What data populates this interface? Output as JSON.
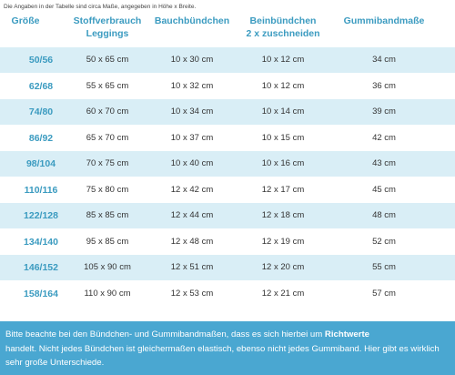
{
  "caption": "Die Angaben in der Tabelle sind circa Maße, angegeben in Höhe x Breite.",
  "headers": {
    "size": "Größe",
    "fabric_line1": "Stoffverbrauch",
    "fabric_line2": "Leggings",
    "waist": "Bauchbündchen",
    "leg_line1": "Beinbündchen",
    "leg_line2": "2 x zuschneiden",
    "elastic": "Gummibandmaße"
  },
  "rows": [
    {
      "size": "50/56",
      "fabric": "50 x 65 cm",
      "waist": "10 x 30 cm",
      "leg": "10 x 12 cm",
      "elastic": "34 cm"
    },
    {
      "size": "62/68",
      "fabric": "55 x 65 cm",
      "waist": "10 x 32 cm",
      "leg": "10 x 12 cm",
      "elastic": "36 cm"
    },
    {
      "size": "74/80",
      "fabric": "60 x 70 cm",
      "waist": "10 x 34 cm",
      "leg": "10 x 14 cm",
      "elastic": "39 cm"
    },
    {
      "size": "86/92",
      "fabric": "65 x 70 cm",
      "waist": "10 x 37 cm",
      "leg": "10 x 15 cm",
      "elastic": "42 cm"
    },
    {
      "size": "98/104",
      "fabric": "70 x 75  cm",
      "waist": "10 x 40 cm",
      "leg": "10 x 16 cm",
      "elastic": "43 cm"
    },
    {
      "size": "110/116",
      "fabric": "75 x 80 cm",
      "waist": "12 x 42 cm",
      "leg": "12 x 17 cm",
      "elastic": "45 cm"
    },
    {
      "size": "122/128",
      "fabric": "85 x 85 cm",
      "waist": "12 x 44 cm",
      "leg": "12 x 18 cm",
      "elastic": "48 cm"
    },
    {
      "size": "134/140",
      "fabric": "95 x 85 cm",
      "waist": "12 x 48 cm",
      "leg": "12 x 19 cm",
      "elastic": "52 cm"
    },
    {
      "size": "146/152",
      "fabric": "105 x 90 cm",
      "waist": "12 x 51 cm",
      "leg": "12 x 20 cm",
      "elastic": "55 cm"
    },
    {
      "size": "158/164",
      "fabric": "110 x 90 cm",
      "waist": "12 x 53 cm",
      "leg": "12 x 21 cm",
      "elastic": "57 cm"
    }
  ],
  "footer": {
    "part1": "Bitte beachte bei den Bündchen- und Gummibandmaßen, dass es sich hierbei um ",
    "bold": "Richtwerte",
    "part2": "handelt. Nicht jedes Bündchen ist gleichermaßen elastisch, ebenso nicht jedes Gummiband. Hier gibt es wirklich sehr große Unterschiede."
  },
  "colors": {
    "header_text": "#3b9bc0",
    "row_shade": "#d9eef6",
    "footer_bg": "#4aa7d1"
  }
}
